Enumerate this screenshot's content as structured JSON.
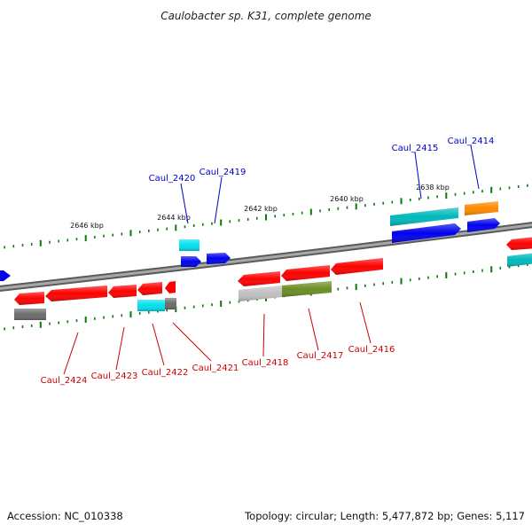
{
  "title": "Caulobacter sp. K31, complete genome",
  "footer": {
    "accession": "Accession: NC_010338",
    "topology": "Topology: circular; Length: 5,477,872 bp; Genes: 5,117"
  },
  "colors": {
    "label_top": "#0000cc",
    "label_bottom": "#cc0000",
    "tick": "#0a7a0a",
    "red": "#ff0000",
    "blue": "#0000ee",
    "cyan": "#00c8d8",
    "teal": "#00b4b4",
    "orange": "#ff8800",
    "olive": "#6b8e23",
    "gray": "#707070",
    "lightgray": "#c8c8c8",
    "backbone": "#808080"
  },
  "kbp_labels": [
    "2646 kbp",
    "2644 kbp",
    "2642 kbp",
    "2640 kbp",
    "2638 kbp"
  ],
  "gene_labels_top": [
    "Caul_2420",
    "Caul_2419",
    "Caul_2415",
    "Caul_2414"
  ],
  "gene_labels_bottom": [
    "Caul_2424",
    "Caul_2423",
    "Caul_2422",
    "Caul_2421",
    "Caul_2418",
    "Caul_2417",
    "Caul_2416"
  ]
}
